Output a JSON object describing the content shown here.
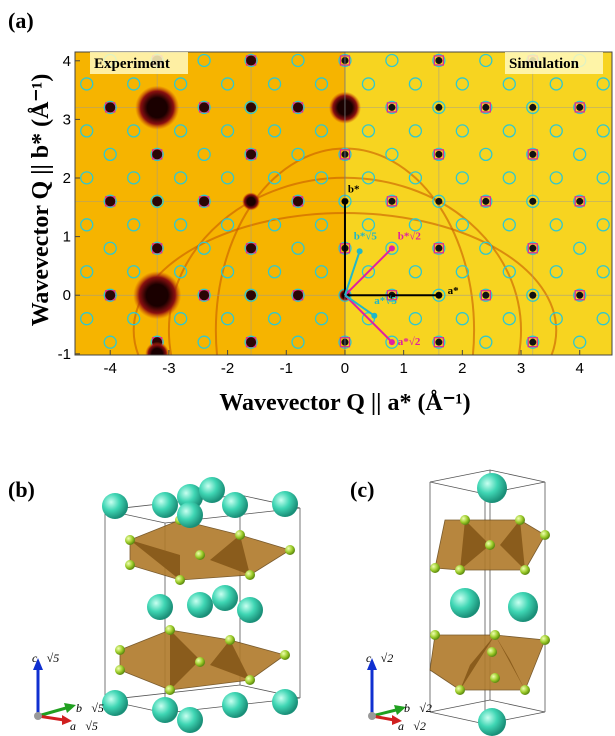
{
  "panel_a": {
    "label": "(a)",
    "left_title": "Experiment",
    "right_title": "Simulation",
    "x_label": "Wavevector Q || a* (Å⁻¹)",
    "y_label": "Wavevector Q || b* (Å⁻¹)",
    "xlim": [
      -4.6,
      4.55
    ],
    "ylim": [
      -1.02,
      4.15
    ],
    "xticks": [
      -4,
      -3,
      -2,
      -1,
      0,
      1,
      2,
      3,
      4
    ],
    "yticks": [
      -1,
      0,
      1,
      2,
      3,
      4
    ],
    "vector_labels": {
      "b": "b*",
      "a": "a*",
      "b2": "b*√2",
      "a2": "a*√2",
      "b5": "b*√5",
      "a5": "a*√5"
    }
  },
  "panel_b": {
    "label": "(b)",
    "axes": {
      "c": "c⃗√5",
      "b": "b⃗√5",
      "a": "a⃗√5"
    }
  },
  "panel_c": {
    "label": "(c)",
    "axes": {
      "c": "c⃗√2",
      "b": "b⃗√2",
      "a": "a⃗√2"
    }
  }
}
